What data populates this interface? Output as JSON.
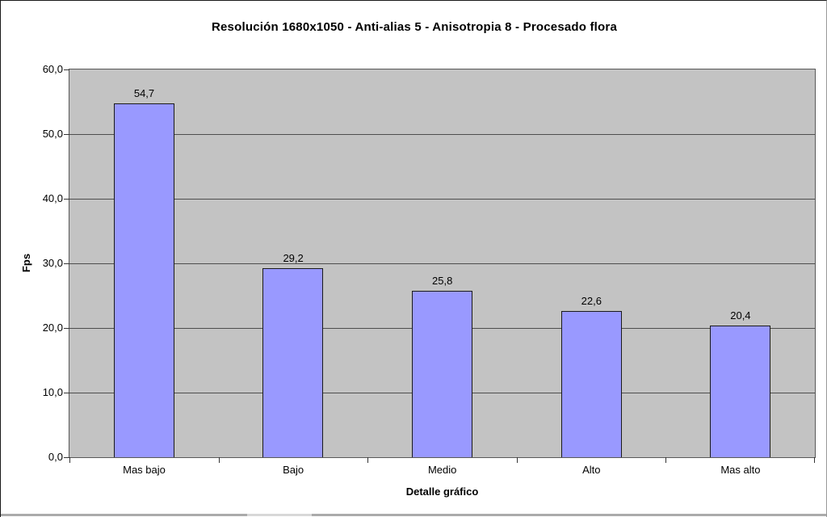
{
  "title": "Resolución 1680x1050 - Anti-alias 5 - Anisotropia 8 - Procesado flora",
  "chart_data": {
    "type": "bar",
    "title": "Resolución 1680x1050 - Anti-alias 5 - Anisotropia 8 - Procesado flora",
    "categories": [
      "Mas bajo",
      "Bajo",
      "Medio",
      "Alto",
      "Mas alto"
    ],
    "values": [
      54.7,
      29.2,
      25.8,
      22.6,
      20.4
    ],
    "value_labels": [
      "54,7",
      "29,2",
      "25,8",
      "22,6",
      "20,4"
    ],
    "xlabel": "Detalle gráfico",
    "ylabel": "Fps",
    "ylim": [
      0,
      60
    ],
    "ytick_interval": 10,
    "ytick_labels": [
      "0,0",
      "10,0",
      "20,0",
      "30,0",
      "40,0",
      "50,0",
      "60,0"
    ],
    "grid": true,
    "legend_position": "none",
    "colors": {
      "bar_fill": "#9999FF",
      "bar_border": "#1A1A1A",
      "plot_background": "#C3C3C3",
      "gridline": "#4D4D4D",
      "page_background": "#FFFFFF",
      "text": "#000000"
    }
  }
}
